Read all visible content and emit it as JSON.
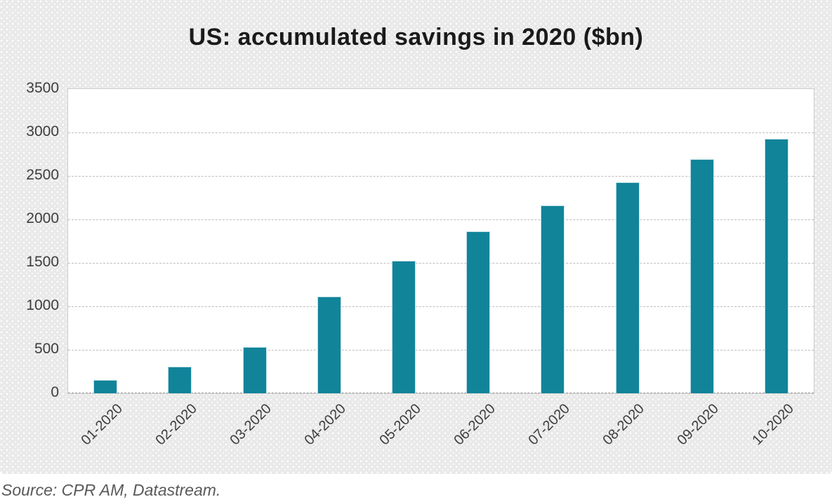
{
  "chart_data": {
    "type": "bar",
    "title": "US: accumulated savings in 2020 ($bn)",
    "categories": [
      "01-2020",
      "02-2020",
      "03-2020",
      "04-2020",
      "05-2020",
      "06-2020",
      "07-2020",
      "08-2020",
      "09-2020",
      "10-2020"
    ],
    "values": [
      150,
      310,
      530,
      1115,
      1525,
      1860,
      2165,
      2430,
      2690,
      2930
    ],
    "xlabel": "",
    "ylabel": "",
    "ylim": [
      0,
      3500
    ],
    "yticks": [
      0,
      500,
      1000,
      1500,
      2000,
      2500,
      3000,
      3500
    ],
    "grid": "horizontal-dashed",
    "legend_position": "none",
    "bar_color": "#11849a",
    "bar_edge_color": "#c4e2e7",
    "plot_bg_color": "#ffffff",
    "panel_bg_color": "#e9e9e9",
    "grid_color": "#bdbdbd",
    "axis_text_color": "#3d3d3d",
    "title_color": "#1a1a1a"
  },
  "source": {
    "text": "Source: CPR AM, Datastream."
  }
}
